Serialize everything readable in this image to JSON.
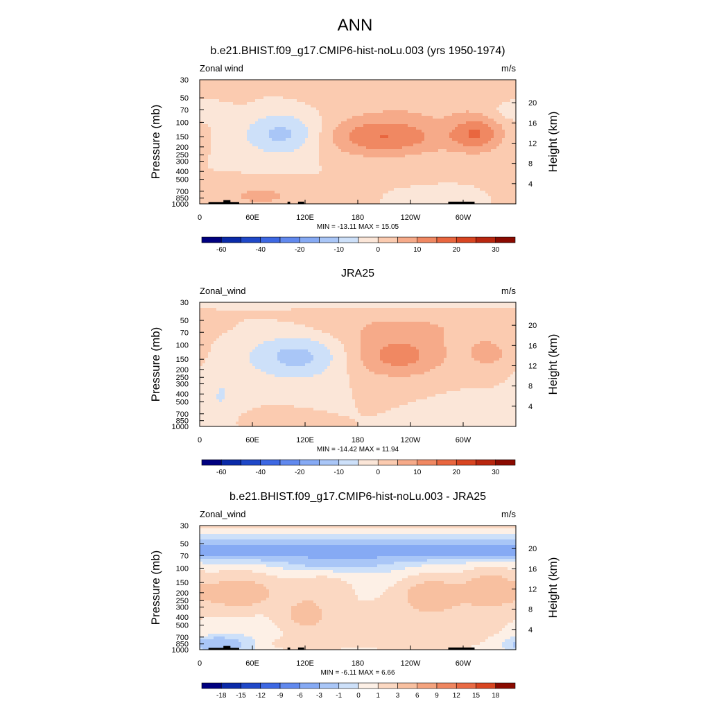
{
  "figure_title": "ANN",
  "colors": {
    "land": "#000000",
    "frame": "#000000",
    "full_scale": [
      "#00007f",
      "#0a2aa8",
      "#1f48c8",
      "#3d68e3",
      "#6189ee",
      "#86aaf4",
      "#a9c6f7",
      "#cde0f9",
      "#fbe6d8",
      "#fbcbb0",
      "#f6aa89",
      "#f08862",
      "#e9663f",
      "#d84521",
      "#b8260f",
      "#8a0a00"
    ],
    "diff_scale": [
      "#00007f",
      "#0a2aa8",
      "#1f48c8",
      "#3d68e3",
      "#6189ee",
      "#86aaf4",
      "#a9c6f7",
      "#cde0f9",
      "#fdf0e6",
      "#fbd8c2",
      "#f8c0a0",
      "#f4a37e",
      "#ef8660",
      "#e96a44",
      "#d84521",
      "#8a0a00"
    ]
  },
  "chart_data": [
    {
      "type": "heatmap",
      "title": "b.e21.BHIST.f09_g17.CMIP6-hist-noLu.003 (yrs 1950-1974)",
      "left_label": "Zonal wind",
      "units": "m/s",
      "ylabel": "Pressure (mb)",
      "ylabel_right": "Height (km)",
      "x_ticks": [
        "0",
        "60E",
        "120E",
        "180",
        "120W",
        "60W"
      ],
      "x_tick_lons": [
        0,
        60,
        120,
        180,
        240,
        300
      ],
      "xlim": [
        0,
        360
      ],
      "y_ticks": [
        "30",
        "50",
        "70",
        "100",
        "150",
        "200",
        "250",
        "300",
        "400",
        "500",
        "700",
        "850",
        "1000"
      ],
      "y_tick_values": [
        30,
        50,
        70,
        100,
        150,
        200,
        250,
        300,
        400,
        500,
        700,
        850,
        1000
      ],
      "ylim": [
        30,
        1000
      ],
      "y_scale": "log",
      "height_ticks": [
        "4",
        "8",
        "12",
        "16",
        "20"
      ],
      "height_values": [
        4,
        8,
        12,
        16,
        20
      ],
      "stats": "MIN = -13.11  MAX =  15.05",
      "min": -13.11,
      "max": 15.05,
      "colorbar_labels": [
        "-60",
        "-40",
        "-20",
        "-10",
        "0",
        "10",
        "20",
        "30"
      ],
      "colorbar_levels": [
        -70,
        -60,
        -50,
        -40,
        -30,
        -20,
        -15,
        -10,
        -5,
        0,
        5,
        10,
        15,
        20,
        25,
        30
      ],
      "features": [
        {
          "lon": 210,
          "p": 150,
          "dlon": 70,
          "dp": 0.55,
          "amp": 15
        },
        {
          "lon": 315,
          "p": 140,
          "dlon": 30,
          "dp": 0.5,
          "amp": 14
        },
        {
          "lon": 95,
          "p": 140,
          "dlon": 45,
          "dp": 0.6,
          "amp": -12
        },
        {
          "lon": 70,
          "p": 800,
          "dlon": 55,
          "dp": 0.35,
          "amp": 6
        },
        {
          "lon": 0,
          "p": 70,
          "dlon": 30,
          "dp": 0.3,
          "amp": -5
        },
        {
          "lon": 260,
          "p": 50,
          "dlon": 120,
          "dp": 0.6,
          "amp": 4
        },
        {
          "lon": 280,
          "p": 900,
          "dlon": 30,
          "dp": 0.2,
          "amp": -5
        }
      ],
      "land": [
        {
          "lon0": 10,
          "lon1": 45,
          "p": 950
        },
        {
          "lon0": 27,
          "lon1": 35,
          "p": 900
        },
        {
          "lon0": 100,
          "lon1": 103,
          "p": 940
        },
        {
          "lon0": 112,
          "lon1": 119,
          "p": 940
        },
        {
          "lon0": 283,
          "lon1": 313,
          "p": 940
        }
      ]
    },
    {
      "type": "heatmap",
      "title": "JRA25",
      "left_label": "Zonal_wind",
      "units": "m/s",
      "ylabel": "Pressure (mb)",
      "ylabel_right": "Height (km)",
      "x_ticks": [
        "0",
        "60E",
        "120E",
        "180",
        "120W",
        "60W"
      ],
      "x_tick_lons": [
        0,
        60,
        120,
        180,
        240,
        300
      ],
      "xlim": [
        0,
        360
      ],
      "y_ticks": [
        "30",
        "50",
        "70",
        "100",
        "150",
        "200",
        "250",
        "300",
        "400",
        "500",
        "700",
        "850",
        "1000"
      ],
      "y_tick_values": [
        30,
        50,
        70,
        100,
        150,
        200,
        250,
        300,
        400,
        500,
        700,
        850,
        1000
      ],
      "ylim": [
        30,
        1000
      ],
      "y_scale": "log",
      "height_ticks": [
        "4",
        "8",
        "12",
        "16",
        "20"
      ],
      "height_values": [
        4,
        8,
        12,
        16,
        20
      ],
      "stats": "MIN = -14.42  MAX =  11.94",
      "min": -14.42,
      "max": 11.94,
      "colorbar_labels": [
        "-60",
        "-40",
        "-20",
        "-10",
        "0",
        "10",
        "20",
        "30"
      ],
      "colorbar_levels": [
        -70,
        -60,
        -50,
        -40,
        -30,
        -20,
        -15,
        -10,
        -5,
        0,
        5,
        10,
        15,
        20,
        25,
        30
      ],
      "features": [
        {
          "lon": 225,
          "p": 140,
          "dlon": 55,
          "dp": 0.6,
          "amp": 12
        },
        {
          "lon": 330,
          "p": 130,
          "dlon": 30,
          "dp": 0.5,
          "amp": 6
        },
        {
          "lon": 110,
          "p": 140,
          "dlon": 55,
          "dp": 0.65,
          "amp": -12
        },
        {
          "lon": 25,
          "p": 400,
          "dlon": 25,
          "dp": 0.9,
          "amp": -5
        },
        {
          "lon": 180,
          "p": 30,
          "dlon": 360,
          "dp": 0.12,
          "amp": -5
        },
        {
          "lon": 230,
          "p": 60,
          "dlon": 110,
          "dp": 0.5,
          "amp": 5
        },
        {
          "lon": 320,
          "p": 750,
          "dlon": 45,
          "dp": 0.45,
          "amp": -5
        },
        {
          "lon": 75,
          "p": 850,
          "dlon": 35,
          "dp": 0.25,
          "amp": 4
        }
      ],
      "land": []
    },
    {
      "type": "heatmap",
      "title": "b.e21.BHIST.f09_g17.CMIP6-hist-noLu.003 - JRA25",
      "left_label": "Zonal_wind",
      "units": "m/s",
      "ylabel": "Pressure (mb)",
      "ylabel_right": "Height (km)",
      "x_ticks": [
        "0",
        "60E",
        "120E",
        "180",
        "120W",
        "60W"
      ],
      "x_tick_lons": [
        0,
        60,
        120,
        180,
        240,
        300
      ],
      "xlim": [
        0,
        360
      ],
      "y_ticks": [
        "30",
        "50",
        "70",
        "100",
        "150",
        "200",
        "250",
        "300",
        "400",
        "500",
        "700",
        "850",
        "1000"
      ],
      "y_tick_values": [
        30,
        50,
        70,
        100,
        150,
        200,
        250,
        300,
        400,
        500,
        700,
        850,
        1000
      ],
      "ylim": [
        30,
        1000
      ],
      "y_scale": "log",
      "height_ticks": [
        "4",
        "8",
        "12",
        "16",
        "20"
      ],
      "height_values": [
        4,
        8,
        12,
        16,
        20
      ],
      "stats": "MIN =  -6.11  MAX =   6.66",
      "min": -6.11,
      "max": 6.66,
      "colorbar_labels": [
        "-18",
        "-15",
        "-12",
        "-9",
        "-6",
        "-3",
        "-1",
        "0",
        "1",
        "3",
        "6",
        "9",
        "12",
        "15",
        "18"
      ],
      "colorbar_levels": [
        -21,
        -18,
        -15,
        -12,
        -9,
        -6,
        -3,
        -1,
        0,
        1,
        3,
        6,
        9,
        12,
        15,
        18
      ],
      "features": [
        {
          "lon": 180,
          "p": 60,
          "dlon": 400,
          "dp": 0.22,
          "amp": -5.5
        },
        {
          "lon": 160,
          "p": 85,
          "dlon": 60,
          "dp": 0.2,
          "amp": -2
        },
        {
          "lon": 175,
          "p": 30,
          "dlon": 400,
          "dp": 0.12,
          "amp": 2
        },
        {
          "lon": 45,
          "p": 200,
          "dlon": 45,
          "dp": 0.5,
          "amp": 5
        },
        {
          "lon": 265,
          "p": 200,
          "dlon": 35,
          "dp": 0.45,
          "amp": 4.5
        },
        {
          "lon": 330,
          "p": 180,
          "dlon": 30,
          "dp": 0.5,
          "amp": 5
        },
        {
          "lon": 120,
          "p": 380,
          "dlon": 30,
          "dp": 0.5,
          "amp": 3.5
        },
        {
          "lon": 250,
          "p": 500,
          "dlon": 100,
          "dp": 0.8,
          "amp": 2.5
        },
        {
          "lon": 140,
          "p": 180,
          "dlon": 35,
          "dp": 0.4,
          "amp": 2
        },
        {
          "lon": 20,
          "p": 850,
          "dlon": 30,
          "dp": 0.2,
          "amp": -3
        },
        {
          "lon": 120,
          "p": 850,
          "dlon": 40,
          "dp": 0.2,
          "amp": 2
        }
      ],
      "land": [
        {
          "lon0": 10,
          "lon1": 45,
          "p": 950
        },
        {
          "lon0": 27,
          "lon1": 35,
          "p": 900
        },
        {
          "lon0": 100,
          "lon1": 103,
          "p": 940
        },
        {
          "lon0": 112,
          "lon1": 119,
          "p": 940
        },
        {
          "lon0": 283,
          "lon1": 313,
          "p": 940
        }
      ]
    }
  ]
}
